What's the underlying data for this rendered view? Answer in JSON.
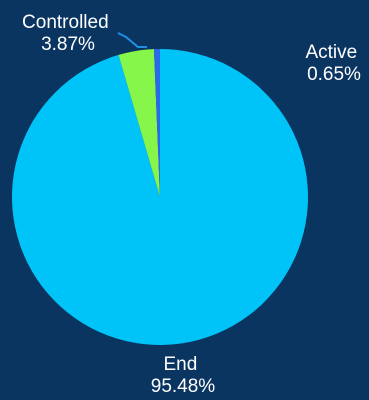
{
  "background": "#0b3561",
  "chart_data": {
    "type": "pie",
    "title": "",
    "slices": [
      {
        "label": "End",
        "value": 95.48,
        "percent_label": "95.48%",
        "color": "#00c3f8"
      },
      {
        "label": "Controlled",
        "value": 3.87,
        "percent_label": "3.87%",
        "color": "#86f74a"
      },
      {
        "label": "Active",
        "value": 0.65,
        "percent_label": "0.65%",
        "color": "#2a6ae8"
      }
    ],
    "leader_line_color": "#1f8fe6",
    "label_color": "#ffffff"
  }
}
